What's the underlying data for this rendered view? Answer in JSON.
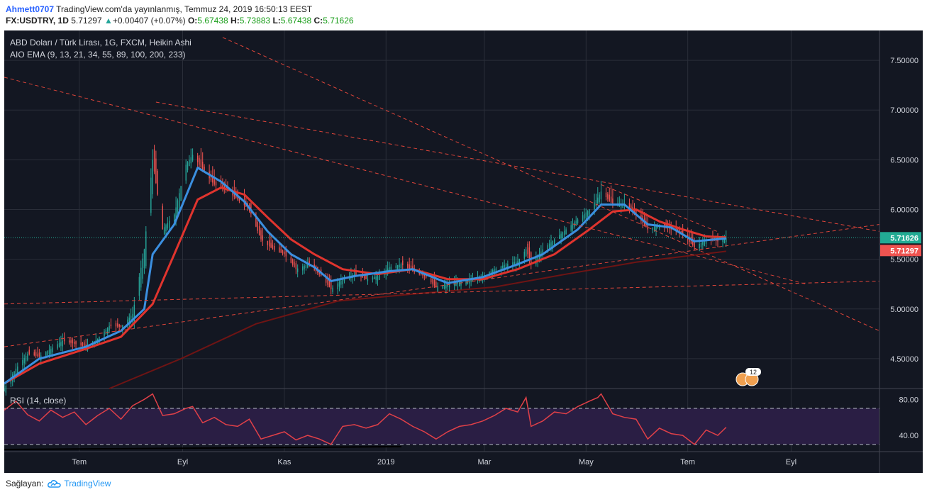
{
  "header": {
    "user": "Ahmett0707",
    "published": "TradingView.com'da yayınlanmış, Temmuz 24, 2019 16:50:13 EEST",
    "symbol": "FX:USDTRY, 1D",
    "last": "5.71297",
    "change_arrow": "▲",
    "change": "+0.00407 (+0.07%)",
    "o_label": "O:",
    "o_val": "5.67438",
    "h_label": "H:",
    "h_val": "5.73883",
    "l_label": "L:",
    "l_val": "5.67438",
    "c_label": "C:",
    "c_val": "5.71626"
  },
  "legend": {
    "instrument": "ABD Doları / Türk Lirası, 1G, FXCM, Heikin Ashi",
    "indicator": "AIO EMA (9, 13, 21, 34, 55, 89, 100, 200, 233)",
    "rsi": "RSI (14, close)"
  },
  "footer": {
    "prefix": "Sağlayan:",
    "brand": "TradingView"
  },
  "colors": {
    "background": "#131722",
    "rsi_band": "#2a1e44",
    "up_candle": "#26a69a",
    "down_candle": "#ef5350",
    "ema_fast": "#3b8fe0",
    "ema_mid": "#e0342e",
    "ema_slow": "#6e1414",
    "rsi_line": "#e04048",
    "trendline": "#e0453a",
    "accent": "#2962ff"
  },
  "chart_data": {
    "type": "candlestick",
    "title": "ABD Doları / Türk Lirası, 1G, FXCM, Heikin Ashi",
    "price_axis": {
      "ticks": [
        "4.50000",
        "5.00000",
        "5.50000",
        "6.00000",
        "6.50000",
        "7.00000",
        "7.50000"
      ],
      "tick_values": [
        4.5,
        5.0,
        5.5,
        6.0,
        6.5,
        7.0,
        7.5
      ],
      "ylim": [
        4.2,
        7.8
      ]
    },
    "time_axis": {
      "labels": [
        "Tem",
        "Eyl",
        "Kas",
        "2019",
        "Mar",
        "May",
        "Tem",
        "Eyl"
      ],
      "label_dates": [
        "2018-07-01",
        "2018-09-01",
        "2018-11-01",
        "2019-01-01",
        "2019-03-01",
        "2019-05-01",
        "2019-07-01",
        "2019-09-01"
      ],
      "xlim": [
        "2018-05-17",
        "2019-10-24"
      ]
    },
    "price_labels": [
      {
        "text": "5.71626",
        "value": 5.71626,
        "color": "#22ab94"
      },
      {
        "text": "5.71297",
        "value": 5.71297,
        "color": "#ef5350"
      }
    ],
    "price_path": [
      [
        "2018-05-17",
        4.2
      ],
      [
        "2018-05-24",
        4.4
      ],
      [
        "2018-05-31",
        4.55
      ],
      [
        "2018-06-07",
        4.52
      ],
      [
        "2018-06-14",
        4.6
      ],
      [
        "2018-06-21",
        4.68
      ],
      [
        "2018-06-28",
        4.65
      ],
      [
        "2018-07-05",
        4.62
      ],
      [
        "2018-07-12",
        4.7
      ],
      [
        "2018-07-19",
        4.83
      ],
      [
        "2018-07-26",
        4.82
      ],
      [
        "2018-08-02",
        4.95
      ],
      [
        "2018-08-09",
        5.6
      ],
      [
        "2018-08-14",
        6.5
      ],
      [
        "2018-08-20",
        5.8
      ],
      [
        "2018-08-27",
        5.95
      ],
      [
        "2018-09-03",
        6.45
      ],
      [
        "2018-09-07",
        6.55
      ],
      [
        "2018-09-13",
        6.4
      ],
      [
        "2018-09-20",
        6.25
      ],
      [
        "2018-09-27",
        6.2
      ],
      [
        "2018-10-04",
        6.1
      ],
      [
        "2018-10-11",
        6.0
      ],
      [
        "2018-10-18",
        5.7
      ],
      [
        "2018-10-25",
        5.6
      ],
      [
        "2018-11-01",
        5.55
      ],
      [
        "2018-11-08",
        5.4
      ],
      [
        "2018-11-15",
        5.45
      ],
      [
        "2018-11-22",
        5.35
      ],
      [
        "2018-11-29",
        5.2
      ],
      [
        "2018-12-06",
        5.3
      ],
      [
        "2018-12-13",
        5.35
      ],
      [
        "2018-12-20",
        5.3
      ],
      [
        "2018-12-27",
        5.33
      ],
      [
        "2019-01-03",
        5.42
      ],
      [
        "2019-01-10",
        5.45
      ],
      [
        "2019-01-17",
        5.38
      ],
      [
        "2019-01-24",
        5.33
      ],
      [
        "2019-01-31",
        5.22
      ],
      [
        "2019-02-07",
        5.25
      ],
      [
        "2019-02-14",
        5.27
      ],
      [
        "2019-02-21",
        5.3
      ],
      [
        "2019-02-28",
        5.33
      ],
      [
        "2019-03-07",
        5.4
      ],
      [
        "2019-03-14",
        5.45
      ],
      [
        "2019-03-21",
        5.48
      ],
      [
        "2019-03-26",
        5.6
      ],
      [
        "2019-03-29",
        5.45
      ],
      [
        "2019-04-05",
        5.6
      ],
      [
        "2019-04-12",
        5.7
      ],
      [
        "2019-04-19",
        5.8
      ],
      [
        "2019-04-26",
        5.9
      ],
      [
        "2019-05-03",
        6.0
      ],
      [
        "2019-05-08",
        6.12
      ],
      [
        "2019-05-10",
        6.18
      ],
      [
        "2019-05-17",
        6.05
      ],
      [
        "2019-05-24",
        6.05
      ],
      [
        "2019-05-31",
        5.95
      ],
      [
        "2019-06-07",
        5.8
      ],
      [
        "2019-06-14",
        5.85
      ],
      [
        "2019-06-21",
        5.8
      ],
      [
        "2019-06-28",
        5.75
      ],
      [
        "2019-07-05",
        5.62
      ],
      [
        "2019-07-12",
        5.7
      ],
      [
        "2019-07-19",
        5.68
      ],
      [
        "2019-07-24",
        5.71626
      ]
    ],
    "series": [
      {
        "name": "AIO EMA",
        "period": 9,
        "values": [
          [
            "2018-05-17",
            4.25
          ],
          [
            "2018-06-07",
            4.5
          ],
          [
            "2018-07-05",
            4.62
          ],
          [
            "2018-07-26",
            4.78
          ],
          [
            "2018-08-09",
            5.0
          ],
          [
            "2018-08-14",
            5.55
          ],
          [
            "2018-08-27",
            5.85
          ],
          [
            "2018-09-10",
            6.42
          ],
          [
            "2018-09-24",
            6.28
          ],
          [
            "2018-10-08",
            6.08
          ],
          [
            "2018-10-22",
            5.78
          ],
          [
            "2018-11-05",
            5.55
          ],
          [
            "2018-11-19",
            5.42
          ],
          [
            "2018-11-29",
            5.28
          ],
          [
            "2018-12-13",
            5.33
          ],
          [
            "2019-01-03",
            5.38
          ],
          [
            "2019-01-17",
            5.4
          ],
          [
            "2019-02-07",
            5.26
          ],
          [
            "2019-02-28",
            5.32
          ],
          [
            "2019-03-21",
            5.45
          ],
          [
            "2019-04-05",
            5.55
          ],
          [
            "2019-04-26",
            5.8
          ],
          [
            "2019-05-10",
            6.05
          ],
          [
            "2019-05-24",
            6.05
          ],
          [
            "2019-06-07",
            5.85
          ],
          [
            "2019-06-21",
            5.82
          ],
          [
            "2019-07-05",
            5.68
          ],
          [
            "2019-07-24",
            5.71
          ]
        ]
      },
      {
        "name": "AIO EMA",
        "period": 34,
        "values": [
          [
            "2018-05-17",
            4.25
          ],
          [
            "2018-06-07",
            4.45
          ],
          [
            "2018-07-05",
            4.6
          ],
          [
            "2018-07-26",
            4.72
          ],
          [
            "2018-08-14",
            5.05
          ],
          [
            "2018-08-27",
            5.55
          ],
          [
            "2018-09-10",
            6.1
          ],
          [
            "2018-09-24",
            6.22
          ],
          [
            "2018-10-08",
            6.15
          ],
          [
            "2018-10-22",
            5.92
          ],
          [
            "2018-11-05",
            5.7
          ],
          [
            "2018-11-19",
            5.55
          ],
          [
            "2018-12-06",
            5.4
          ],
          [
            "2018-12-27",
            5.35
          ],
          [
            "2019-01-17",
            5.4
          ],
          [
            "2019-02-07",
            5.3
          ],
          [
            "2019-02-28",
            5.3
          ],
          [
            "2019-03-21",
            5.4
          ],
          [
            "2019-04-12",
            5.55
          ],
          [
            "2019-05-03",
            5.8
          ],
          [
            "2019-05-17",
            5.98
          ],
          [
            "2019-05-31",
            6.0
          ],
          [
            "2019-06-14",
            5.88
          ],
          [
            "2019-06-28",
            5.8
          ],
          [
            "2019-07-12",
            5.73
          ],
          [
            "2019-07-24",
            5.72
          ]
        ]
      },
      {
        "name": "AIO EMA",
        "period": 233,
        "values": [
          [
            "2018-07-19",
            4.2
          ],
          [
            "2018-08-31",
            4.5
          ],
          [
            "2018-10-15",
            4.85
          ],
          [
            "2018-12-03",
            5.08
          ],
          [
            "2019-01-17",
            5.15
          ],
          [
            "2019-03-07",
            5.22
          ],
          [
            "2019-04-19",
            5.35
          ],
          [
            "2019-05-31",
            5.47
          ],
          [
            "2019-07-24",
            5.58
          ]
        ]
      },
      {
        "name": "RSI (14, close)",
        "axis_ticks": [
          "40.00",
          "80.00"
        ],
        "tick_values": [
          40,
          80
        ],
        "bands": [
          70,
          30
        ],
        "ylim": [
          22,
          92
        ],
        "values": [
          [
            "2018-05-17",
            68
          ],
          [
            "2018-05-24",
            78
          ],
          [
            "2018-05-31",
            63
          ],
          [
            "2018-06-07",
            56
          ],
          [
            "2018-06-14",
            68
          ],
          [
            "2018-06-21",
            60
          ],
          [
            "2018-06-28",
            66
          ],
          [
            "2018-07-05",
            52
          ],
          [
            "2018-07-12",
            62
          ],
          [
            "2018-07-19",
            70
          ],
          [
            "2018-07-26",
            58
          ],
          [
            "2018-08-02",
            73
          ],
          [
            "2018-08-09",
            80
          ],
          [
            "2018-08-14",
            86
          ],
          [
            "2018-08-20",
            62
          ],
          [
            "2018-08-27",
            64
          ],
          [
            "2018-09-03",
            70
          ],
          [
            "2018-09-07",
            72
          ],
          [
            "2018-09-13",
            54
          ],
          [
            "2018-09-20",
            60
          ],
          [
            "2018-09-27",
            52
          ],
          [
            "2018-10-04",
            50
          ],
          [
            "2018-10-11",
            58
          ],
          [
            "2018-10-18",
            36
          ],
          [
            "2018-10-25",
            40
          ],
          [
            "2018-11-01",
            44
          ],
          [
            "2018-11-08",
            35
          ],
          [
            "2018-11-15",
            40
          ],
          [
            "2018-11-22",
            36
          ],
          [
            "2018-11-29",
            30
          ],
          [
            "2018-12-06",
            50
          ],
          [
            "2018-12-13",
            52
          ],
          [
            "2018-12-20",
            48
          ],
          [
            "2018-12-27",
            52
          ],
          [
            "2019-01-03",
            64
          ],
          [
            "2019-01-10",
            58
          ],
          [
            "2019-01-17",
            50
          ],
          [
            "2019-01-24",
            44
          ],
          [
            "2019-01-31",
            36
          ],
          [
            "2019-02-07",
            44
          ],
          [
            "2019-02-14",
            50
          ],
          [
            "2019-02-21",
            52
          ],
          [
            "2019-02-28",
            56
          ],
          [
            "2019-03-07",
            62
          ],
          [
            "2019-03-14",
            70
          ],
          [
            "2019-03-21",
            66
          ],
          [
            "2019-03-26",
            82
          ],
          [
            "2019-03-29",
            50
          ],
          [
            "2019-04-05",
            56
          ],
          [
            "2019-04-12",
            66
          ],
          [
            "2019-04-19",
            64
          ],
          [
            "2019-04-26",
            72
          ],
          [
            "2019-05-03",
            78
          ],
          [
            "2019-05-08",
            82
          ],
          [
            "2019-05-10",
            86
          ],
          [
            "2019-05-17",
            64
          ],
          [
            "2019-05-24",
            60
          ],
          [
            "2019-05-31",
            58
          ],
          [
            "2019-06-07",
            36
          ],
          [
            "2019-06-14",
            48
          ],
          [
            "2019-06-21",
            42
          ],
          [
            "2019-06-28",
            40
          ],
          [
            "2019-07-05",
            30
          ],
          [
            "2019-07-12",
            46
          ],
          [
            "2019-07-19",
            40
          ],
          [
            "2019-07-24",
            49
          ]
        ]
      }
    ],
    "trendlines": [
      {
        "from": [
          "2018-05-17",
          7.33
        ],
        "to": [
          "2019-09-10",
          5.25
        ]
      },
      {
        "from": [
          "2018-08-16",
          7.08
        ],
        "to": [
          "2019-10-24",
          5.78
        ]
      },
      {
        "from": [
          "2018-09-25",
          7.73
        ],
        "to": [
          "2019-10-24",
          4.78
        ]
      },
      {
        "from": [
          "2019-05-10",
          6.25
        ],
        "to": [
          "2019-07-20",
          5.77
        ]
      },
      {
        "from": [
          "2018-05-17",
          4.62
        ],
        "to": [
          "2019-10-24",
          5.85
        ]
      },
      {
        "from": [
          "2018-05-17",
          5.05
        ],
        "to": [
          "2019-10-24",
          5.28
        ]
      }
    ],
    "grid": true,
    "legend": "top-left"
  }
}
